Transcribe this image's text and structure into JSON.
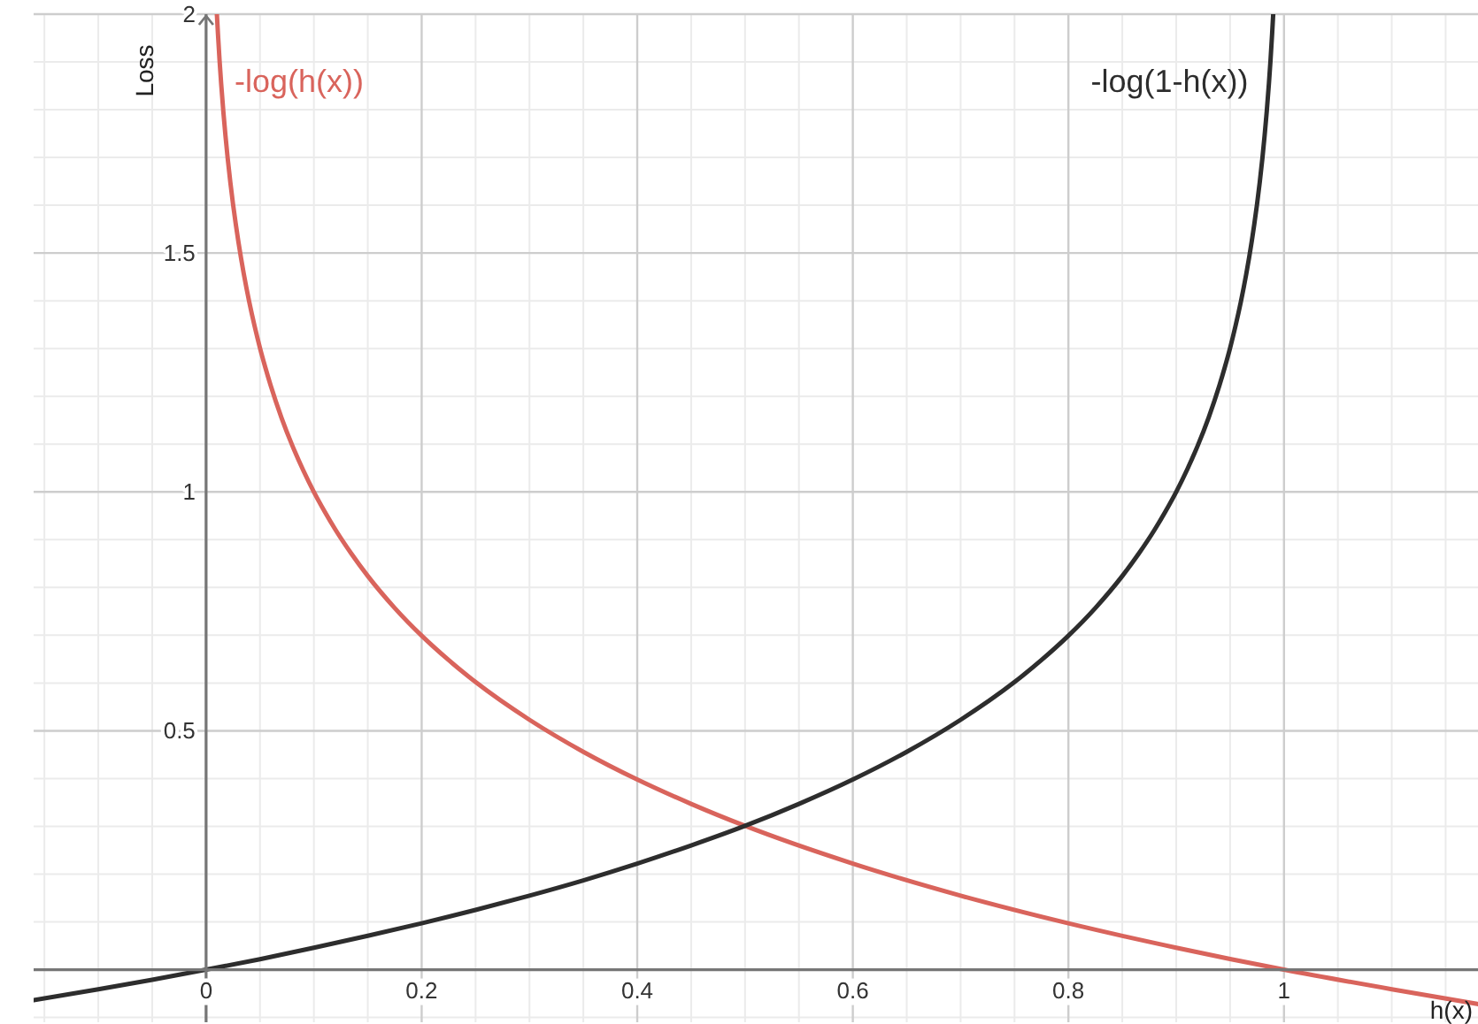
{
  "chart_data": {
    "type": "line",
    "xlabel": "h(x)",
    "ylabel": "Loss",
    "xlim": [
      -0.16,
      1.18
    ],
    "ylim": [
      -0.11,
      2.0
    ],
    "xticks": [
      {
        "value": -0.15,
        "label": null
      },
      {
        "value": -0.1,
        "label": null
      },
      {
        "value": -0.05,
        "label": null
      },
      0,
      {
        "value": 0.05,
        "label": null
      },
      {
        "value": 0.1,
        "label": null
      },
      {
        "value": 0.15,
        "label": null
      },
      0.2,
      {
        "value": 0.25,
        "label": null
      },
      {
        "value": 0.3,
        "label": null
      },
      {
        "value": 0.35,
        "label": null
      },
      0.4,
      {
        "value": 0.45,
        "label": null
      },
      {
        "value": 0.5,
        "label": null
      },
      {
        "value": 0.55,
        "label": null
      },
      0.6,
      {
        "value": 0.65,
        "label": null
      },
      {
        "value": 0.7,
        "label": null
      },
      {
        "value": 0.75,
        "label": null
      },
      0.8,
      {
        "value": 0.85,
        "label": null
      },
      {
        "value": 0.9,
        "label": null
      },
      {
        "value": 0.95,
        "label": null
      },
      1,
      {
        "value": 1.05,
        "label": null
      },
      {
        "value": 1.1,
        "label": null
      },
      {
        "value": 1.15,
        "label": null
      }
    ],
    "yticks": [
      {
        "value": -0.1,
        "label": null
      },
      {
        "value": 0.1,
        "label": null
      },
      {
        "value": 0.2,
        "label": null
      },
      {
        "value": 0.3,
        "label": null
      },
      {
        "value": 0.4,
        "label": null
      },
      0.5,
      {
        "value": 0.6,
        "label": null
      },
      {
        "value": 0.7,
        "label": null
      },
      {
        "value": 0.8,
        "label": null
      },
      {
        "value": 0.9,
        "label": null
      },
      1,
      {
        "value": 1.1,
        "label": null
      },
      {
        "value": 1.2,
        "label": null
      },
      {
        "value": 1.3,
        "label": null
      },
      {
        "value": 1.4,
        "label": null
      },
      1.5,
      {
        "value": 1.6,
        "label": null
      },
      {
        "value": 1.7,
        "label": null
      },
      {
        "value": 1.8,
        "label": null
      },
      {
        "value": 1.9,
        "label": null
      },
      2
    ],
    "grid": true,
    "marker": "none",
    "line_style": "solid",
    "series": [
      {
        "name": "-log(h(x))",
        "color": "#d9645c",
        "x": [
          0.01,
          0.011,
          0.0125,
          0.014,
          0.016,
          0.018,
          0.02,
          0.0225,
          0.025,
          0.0275,
          0.03,
          0.035,
          0.04,
          0.045,
          0.05,
          0.055,
          0.06,
          0.07,
          0.08,
          0.09,
          0.1,
          0.11,
          0.12,
          0.135,
          0.15,
          0.175,
          0.2,
          0.225,
          0.25,
          0.3,
          0.35,
          0.4,
          0.45,
          0.5,
          0.6,
          0.7,
          0.8,
          0.9,
          1.0,
          1.1,
          1.18
        ],
        "values": [
          2.0,
          1.959,
          1.903,
          1.854,
          1.796,
          1.745,
          1.699,
          1.648,
          1.602,
          1.561,
          1.523,
          1.456,
          1.398,
          1.347,
          1.301,
          1.26,
          1.222,
          1.155,
          1.097,
          1.046,
          1.0,
          0.959,
          0.921,
          0.87,
          0.824,
          0.757,
          0.699,
          0.648,
          0.602,
          0.523,
          0.456,
          0.398,
          0.347,
          0.301,
          0.222,
          0.155,
          0.097,
          0.046,
          0.0,
          -0.041,
          -0.072
        ]
      },
      {
        "name": "-log(1-h(x))",
        "color": "#2d2d2d",
        "x": [
          -0.16,
          -0.1,
          -0.05,
          0,
          0.05,
          0.1,
          0.15,
          0.2,
          0.25,
          0.3,
          0.35,
          0.4,
          0.45,
          0.5,
          0.55,
          0.6,
          0.65,
          0.7,
          0.75,
          0.775,
          0.8,
          0.825,
          0.85,
          0.865,
          0.88,
          0.89,
          0.9,
          0.91,
          0.92,
          0.93,
          0.94,
          0.945,
          0.95,
          0.955,
          0.96,
          0.965,
          0.97,
          0.9725,
          0.975,
          0.9775,
          0.98,
          0.982,
          0.984,
          0.986,
          0.9875,
          0.989,
          0.99
        ],
        "values": [
          -0.064,
          -0.041,
          -0.021,
          0.0,
          0.022,
          0.046,
          0.071,
          0.097,
          0.125,
          0.155,
          0.187,
          0.222,
          0.26,
          0.301,
          0.347,
          0.398,
          0.456,
          0.523,
          0.602,
          0.648,
          0.699,
          0.757,
          0.824,
          0.87,
          0.921,
          0.959,
          1.0,
          1.046,
          1.097,
          1.155,
          1.222,
          1.26,
          1.301,
          1.347,
          1.398,
          1.456,
          1.523,
          1.561,
          1.602,
          1.648,
          1.699,
          1.745,
          1.796,
          1.854,
          1.903,
          1.959,
          2.0
        ]
      }
    ]
  }
}
